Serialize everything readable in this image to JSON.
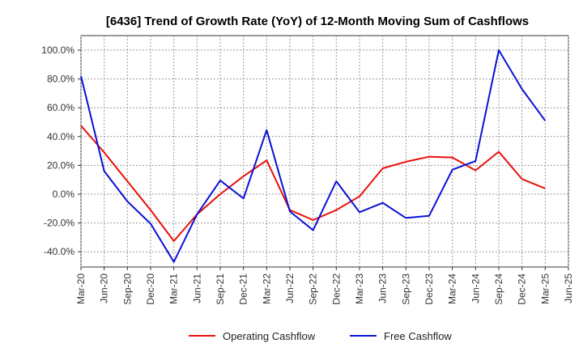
{
  "chart_data": {
    "type": "line",
    "title": "[6436]  Trend of Growth Rate (YoY) of 12-Month Moving Sum of Cashflows",
    "xlabel": "",
    "ylabel": "",
    "ylim": [
      -50,
      105
    ],
    "grid": true,
    "legend_position": "bottom",
    "x": [
      "Mar-20",
      "Jun-20",
      "Sep-20",
      "Dec-20",
      "Mar-21",
      "Jun-21",
      "Sep-21",
      "Dec-21",
      "Mar-22",
      "Jun-22",
      "Sep-22",
      "Dec-22",
      "Mar-23",
      "Jun-23",
      "Sep-23",
      "Dec-23",
      "Mar-24",
      "Jun-24",
      "Sep-24",
      "Dec-24",
      "Mar-25",
      "Jun-25"
    ],
    "yticks": [
      100,
      80,
      60,
      40,
      20,
      0,
      -20,
      -40
    ],
    "ytick_labels": [
      "100.0%",
      "80.0%",
      "60.0%",
      "40.0%",
      "20.0%",
      "0.0%",
      "-20.0%",
      "-40.0%"
    ],
    "series": [
      {
        "name": "Operating Cashflow",
        "color": "#e8100c",
        "values": [
          47.5,
          29,
          9,
          -11,
          -32.5,
          -14,
          0,
          12.5,
          23.5,
          -11,
          -18,
          -11,
          -1.5,
          18,
          22.5,
          26,
          25.5,
          16.5,
          29.5,
          10.5,
          4,
          null
        ]
      },
      {
        "name": "Free Cashflow",
        "color": "#0a12d6",
        "values": [
          82,
          16,
          -5,
          -20.5,
          -47,
          -14,
          9.5,
          -3,
          44.5,
          -12,
          -25,
          9,
          -12.5,
          -6,
          -16.5,
          -15,
          17,
          23,
          100,
          73,
          51,
          null
        ]
      }
    ]
  }
}
